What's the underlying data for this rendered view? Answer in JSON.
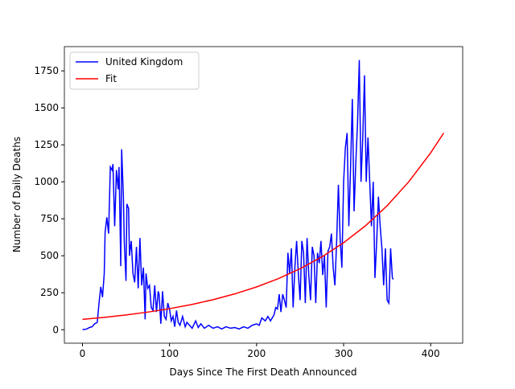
{
  "chart_data": {
    "type": "line",
    "xlabel": "Days Since The First Death Announced",
    "ylabel": "Number of Daily Deaths",
    "xlim": [
      -20.8,
      436.8
    ],
    "ylim": [
      -91,
      1914
    ],
    "xticks": [
      0,
      100,
      200,
      300,
      400
    ],
    "yticks": [
      0,
      250,
      500,
      750,
      1000,
      1250,
      1500,
      1750
    ],
    "legend": "upper left",
    "series": [
      {
        "name": "United Kingdom",
        "color": "#0000ff",
        "x": [
          0,
          2,
          5,
          8,
          11,
          14,
          17,
          19,
          21,
          23,
          25,
          26,
          28,
          30,
          32,
          34,
          35,
          37,
          39,
          41,
          42,
          44,
          45,
          47,
          48,
          50,
          51,
          53,
          54,
          56,
          58,
          60,
          62,
          64,
          66,
          68,
          70,
          72,
          73,
          75,
          77,
          79,
          81,
          83,
          85,
          87,
          88,
          90,
          92,
          94,
          96,
          98,
          100,
          102,
          104,
          106,
          108,
          110,
          112,
          115,
          118,
          120,
          123,
          126,
          130,
          133,
          136,
          140,
          145,
          150,
          155,
          160,
          165,
          170,
          175,
          180,
          185,
          190,
          195,
          200,
          203,
          206,
          210,
          213,
          216,
          220,
          222,
          224,
          226,
          228,
          230,
          232,
          234,
          236,
          238,
          240,
          242,
          244,
          246,
          248,
          250,
          252,
          254,
          256,
          258,
          260,
          262,
          264,
          266,
          268,
          270,
          272,
          274,
          276,
          278,
          280,
          282,
          284,
          286,
          288,
          290,
          292,
          294,
          296,
          298,
          300,
          302,
          304,
          306,
          308,
          310,
          312,
          314,
          316,
          318,
          320,
          322,
          324,
          326,
          328,
          330,
          332,
          334,
          336,
          338,
          340,
          342,
          344,
          346,
          348,
          350,
          352,
          354,
          356,
          357
        ],
        "values": [
          1,
          2,
          5,
          15,
          20,
          40,
          50,
          180,
          290,
          220,
          380,
          660,
          760,
          650,
          1100,
          1080,
          1120,
          700,
          1080,
          950,
          1100,
          430,
          1220,
          900,
          600,
          330,
          850,
          820,
          500,
          600,
          380,
          320,
          560,
          280,
          620,
          300,
          420,
          70,
          380,
          280,
          300,
          150,
          130,
          300,
          120,
          260,
          240,
          40,
          260,
          90,
          70,
          180,
          140,
          60,
          90,
          20,
          130,
          50,
          30,
          90,
          20,
          50,
          30,
          10,
          60,
          15,
          40,
          10,
          30,
          10,
          20,
          5,
          20,
          10,
          15,
          5,
          20,
          10,
          30,
          40,
          30,
          80,
          60,
          90,
          60,
          100,
          150,
          140,
          240,
          120,
          240,
          200,
          150,
          520,
          380,
          550,
          150,
          420,
          600,
          380,
          200,
          600,
          520,
          180,
          620,
          370,
          200,
          560,
          500,
          180,
          520,
          450,
          600,
          370,
          500,
          150,
          530,
          560,
          650,
          420,
          300,
          600,
          980,
          620,
          420,
          1000,
          1230,
          1330,
          700,
          1100,
          1560,
          800,
          1130,
          1400,
          1823,
          1000,
          1300,
          1720,
          1000,
          1300,
          1000,
          700,
          1000,
          350,
          600,
          900,
          700,
          550,
          300,
          550,
          200,
          180,
          550,
          350,
          340
        ]
      },
      {
        "name": "Fit",
        "color": "#ff0000",
        "x": [
          0,
          25,
          50,
          75,
          100,
          125,
          150,
          175,
          200,
          225,
          250,
          275,
          300,
          325,
          350,
          375,
          400,
          415
        ],
        "values": [
          70,
          83.6,
          99.8,
          119.2,
          142.3,
          170,
          202.9,
          242.3,
          289.3,
          345.5,
          412.5,
          492.6,
          588.2,
          702.3,
          838.6,
          1001.4,
          1195.8,
          1330
        ]
      }
    ]
  }
}
